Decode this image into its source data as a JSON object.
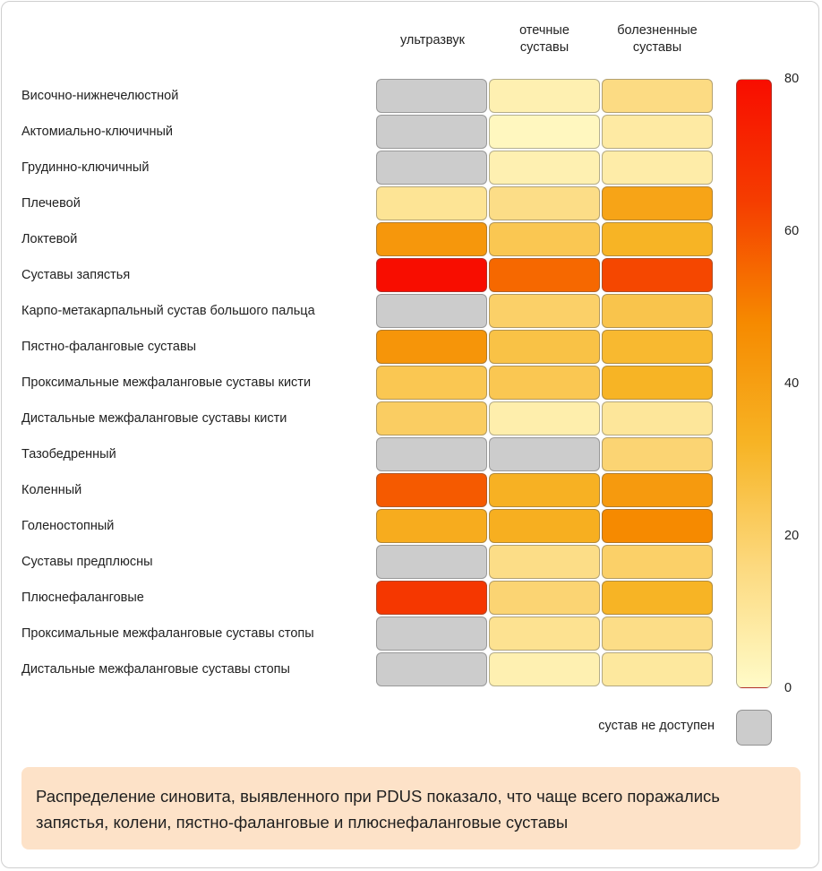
{
  "chart_data": {
    "type": "heatmap",
    "columns": [
      "ультразвук",
      "отечные суставы",
      "болезненные суставы"
    ],
    "rows": [
      {
        "label": "Височно-нижнечелюстной",
        "values": [
          null,
          5,
          15
        ]
      },
      {
        "label": "Актомиально-ключичный",
        "values": [
          null,
          2,
          8
        ]
      },
      {
        "label": "Грудинно-ключичный",
        "values": [
          null,
          5,
          7
        ]
      },
      {
        "label": "Плечевой",
        "values": [
          11,
          14,
          38
        ]
      },
      {
        "label": "Локтевой",
        "values": [
          43,
          24,
          32
        ]
      },
      {
        "label": "Суставы запястья",
        "values": [
          80,
          55,
          62
        ]
      },
      {
        "label": "Карпо-метакарпальный сустав большого пальца",
        "values": [
          null,
          20,
          25
        ]
      },
      {
        "label": "Пястно-фаланговые суставы",
        "values": [
          44,
          26,
          30
        ]
      },
      {
        "label": "Проксимальные межфаланговые суставы кисти",
        "values": [
          24,
          24,
          32
        ]
      },
      {
        "label": "Дистальные межфаланговые суставы кисти",
        "values": [
          21,
          6,
          10
        ]
      },
      {
        "label": "Тазобедренный",
        "values": [
          null,
          null,
          18
        ]
      },
      {
        "label": "Коленный",
        "values": [
          58,
          33,
          42
        ]
      },
      {
        "label": "Голеностопный",
        "values": [
          35,
          34,
          48
        ]
      },
      {
        "label": "Суставы предплюсны",
        "values": [
          null,
          14,
          20
        ]
      },
      {
        "label": "Плюснефаланговые",
        "values": [
          66,
          18,
          32
        ]
      },
      {
        "label": "Проксимальные межфаланговые суставы стопы",
        "values": [
          null,
          12,
          14
        ]
      },
      {
        "label": "Дистальные межфаланговые суставы стопы",
        "values": [
          null,
          5,
          9
        ]
      }
    ],
    "colorbar": {
      "min": 0,
      "max": 80,
      "ticks": [
        0,
        20,
        40,
        60,
        80
      ],
      "colors": [
        "#fffbc8",
        "#fcd97e",
        "#f7b425",
        "#f68a00",
        "#f53d00",
        "#f80d00"
      ]
    },
    "missing_color": "#cccccc"
  },
  "legend": {
    "missing_label": "сустав не доступен"
  },
  "note": "Распределение синовита, выявленного при PDUS показало, что чаще всего поражались запястья, колени, пястно-фаланговые и плюснефаланговые суставы"
}
